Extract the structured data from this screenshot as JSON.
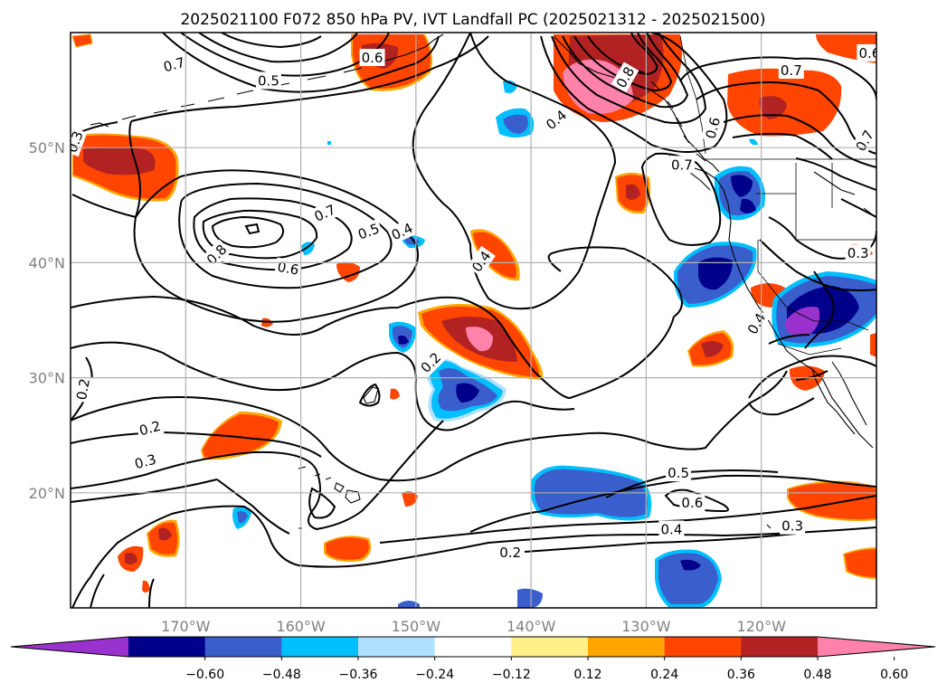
{
  "title": "2025021100 F072 850 hPa PV, IVT Landfall PC (2025021312 - 2025021500)",
  "map": {
    "extent": {
      "lon_min": -180,
      "lon_max": -110,
      "lat_min": 10,
      "lat_max": 60
    },
    "lat_ticks": [
      {
        "value": 20,
        "label": "20°N"
      },
      {
        "value": 30,
        "label": "30°N"
      },
      {
        "value": 40,
        "label": "40°N"
      },
      {
        "value": 50,
        "label": "50°N"
      }
    ],
    "lon_ticks": [
      {
        "value": -170,
        "label": "170°W"
      },
      {
        "value": -160,
        "label": "160°W"
      },
      {
        "value": -150,
        "label": "150°W"
      },
      {
        "value": -140,
        "label": "140°W"
      },
      {
        "value": -130,
        "label": "130°W"
      },
      {
        "value": -120,
        "label": "120°W"
      }
    ],
    "grid": true
  },
  "colorbar": {
    "colors": [
      "#9932cc",
      "#00008b",
      "#3a5fcd",
      "#00bfff",
      "#b0e2ff",
      "#ffffff",
      "#fff08a",
      "#ffa500",
      "#ff4500",
      "#b22222",
      "#ff82ab"
    ],
    "tick_labels": [
      "−0.60",
      "−0.48",
      "−0.36",
      "−0.24",
      "−0.12",
      "0.12",
      "0.24",
      "0.36",
      "0.48",
      "0.60"
    ]
  },
  "contour_labels": [
    {
      "text": "0.7",
      "lon": -171.0,
      "lat": 57.2,
      "rot": 15
    },
    {
      "text": "0.5",
      "lon": -162.8,
      "lat": 55.8,
      "rot": 0
    },
    {
      "text": "0.6",
      "lon": -153.8,
      "lat": 57.8,
      "rot": 0
    },
    {
      "text": "0.3",
      "lon": -179.6,
      "lat": 50.5,
      "rot": 70
    },
    {
      "text": "0.7",
      "lon": -157.9,
      "lat": 44.3,
      "rot": 25
    },
    {
      "text": "0.5",
      "lon": -154.1,
      "lat": 42.7,
      "rot": 20
    },
    {
      "text": "0.4",
      "lon": -151.2,
      "lat": 42.7,
      "rot": 25
    },
    {
      "text": "0.8",
      "lon": -167.3,
      "lat": 40.7,
      "rot": 45
    },
    {
      "text": "0.6",
      "lon": -161.1,
      "lat": 39.5,
      "rot": -10
    },
    {
      "text": "0.4",
      "lon": -144.3,
      "lat": 40.1,
      "rot": 55
    },
    {
      "text": "0.4",
      "lon": -137.8,
      "lat": 52.4,
      "rot": 40
    },
    {
      "text": "0.8",
      "lon": -131.8,
      "lat": 56.1,
      "rot": 60
    },
    {
      "text": "0.6",
      "lon": -124.2,
      "lat": 51.7,
      "rot": 75
    },
    {
      "text": "0.7",
      "lon": -126.9,
      "lat": 48.5,
      "rot": 0
    },
    {
      "text": "0.7",
      "lon": -117.4,
      "lat": 56.7,
      "rot": 0
    },
    {
      "text": "0.7",
      "lon": -111.0,
      "lat": 50.6,
      "rot": 60
    },
    {
      "text": "0.6",
      "lon": -110.6,
      "lat": 58.2,
      "rot": 0
    },
    {
      "text": "0.3",
      "lon": -111.6,
      "lat": 40.8,
      "rot": 0
    },
    {
      "text": "0.4",
      "lon": -120.4,
      "lat": 34.7,
      "rot": 60
    },
    {
      "text": "0.2",
      "lon": -148.7,
      "lat": 31.3,
      "rot": 45
    },
    {
      "text": "0.2",
      "lon": -178.9,
      "lat": 29.0,
      "rot": 80
    },
    {
      "text": "0.2",
      "lon": -173.1,
      "lat": 25.6,
      "rot": 15
    },
    {
      "text": "0.3",
      "lon": -173.5,
      "lat": 22.7,
      "rot": 15
    },
    {
      "text": "0.5",
      "lon": -127.2,
      "lat": 21.7,
      "rot": 0
    },
    {
      "text": "0.6",
      "lon": -126.0,
      "lat": 19.1,
      "rot": 0
    },
    {
      "text": "0.4",
      "lon": -127.8,
      "lat": 16.8,
      "rot": 0
    },
    {
      "text": "0.3",
      "lon": -117.3,
      "lat": 17.1,
      "rot": 0
    },
    {
      "text": "0.2",
      "lon": -141.8,
      "lat": 14.8,
      "rot": 0
    }
  ]
}
